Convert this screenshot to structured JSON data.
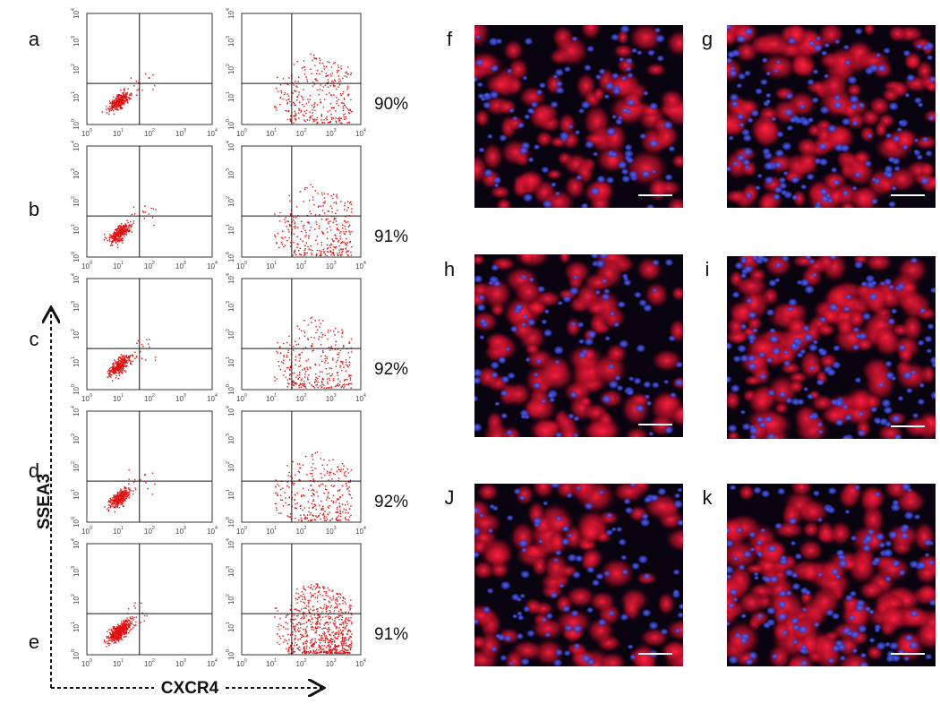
{
  "flow_panels": [
    {
      "label": "a",
      "percent": "90%"
    },
    {
      "label": "b",
      "percent": "91%"
    },
    {
      "label": "c",
      "percent": "92%"
    },
    {
      "label": "d",
      "percent": "92%"
    },
    {
      "label": "e",
      "percent": "91%"
    }
  ],
  "image_panels": [
    {
      "label": "f"
    },
    {
      "label": "g"
    },
    {
      "label": "h"
    },
    {
      "label": "i"
    },
    {
      "label": "J"
    },
    {
      "label": "k"
    }
  ],
  "axes": {
    "x_label": "CXCR4",
    "y_label": "SSEA3",
    "ticks": [
      {
        "base": "10",
        "exp": "0"
      },
      {
        "base": "10",
        "exp": "1"
      },
      {
        "base": "10",
        "exp": "2"
      },
      {
        "base": "10",
        "exp": "3"
      },
      {
        "base": "10",
        "exp": "4"
      }
    ]
  }
}
